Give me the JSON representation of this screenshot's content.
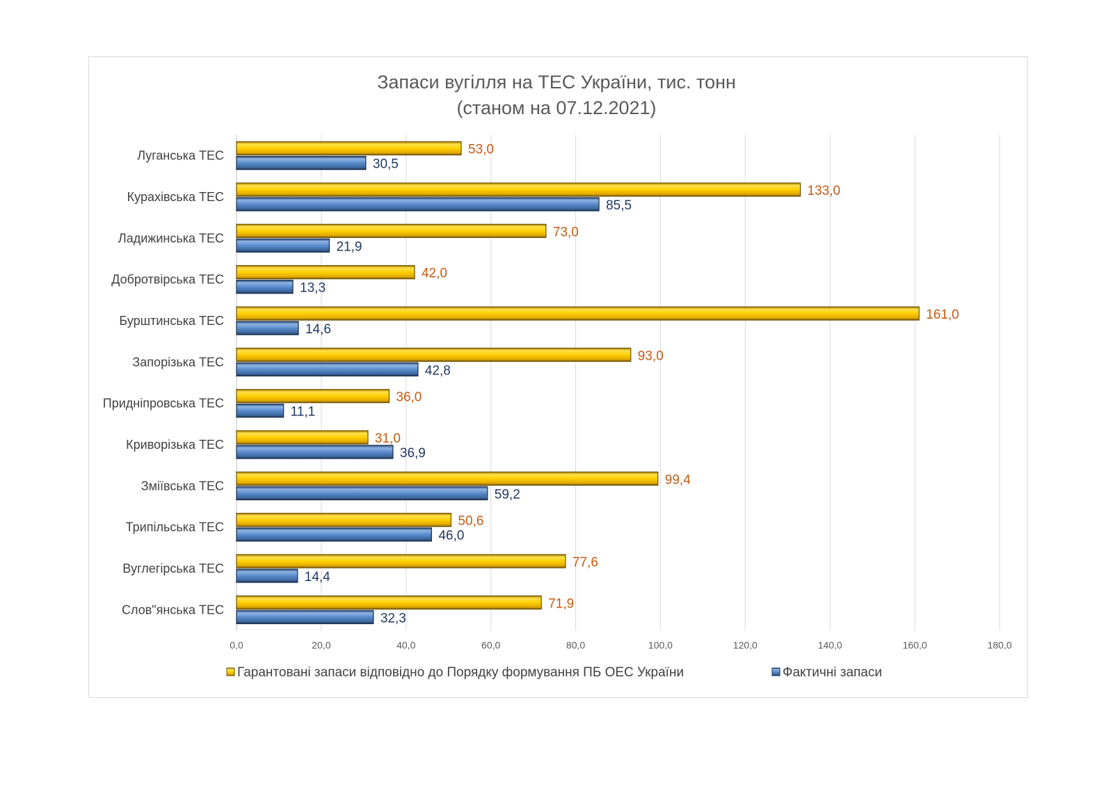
{
  "chart_data": {
    "type": "bar",
    "orientation": "horizontal",
    "title": "Запаси вугілля на ТЕС України, тис. тонн",
    "subtitle": "(станом на 07.12.2021)",
    "categories": [
      "Луганська ТЕС",
      "Курахівська ТЕС",
      "Ладижинська ТЕС",
      "Добротвірська ТЕС",
      "Бурштинська ТЕС",
      "Запорізька ТЕС",
      "Придніпровська ТЕС",
      "Криворізька ТЕС",
      "Зміївська ТЕС",
      "Трипільська ТЕС",
      "Вуглегірська ТЕС",
      "Слов\"янська ТЕС"
    ],
    "series": [
      {
        "name": "Гарантовані запаси відповідно до Порядку формування ПБ ОЕС України",
        "color": "#ffc000",
        "label_color": "#c55a11",
        "values": [
          53.0,
          133.0,
          73.0,
          42.0,
          161.0,
          93.0,
          36.0,
          31.0,
          99.4,
          50.6,
          77.6,
          71.9
        ],
        "labels": [
          "53,0",
          "133,0",
          "73,0",
          "42,0",
          "161,0",
          "93,0",
          "36,0",
          "31,0",
          "99,4",
          "50,6",
          "77,6",
          "71,9"
        ]
      },
      {
        "name": "Фактичні запаси",
        "color": "#4f81bd",
        "label_color": "#1f3864",
        "values": [
          30.5,
          85.5,
          21.9,
          13.3,
          14.6,
          42.8,
          11.1,
          36.9,
          59.2,
          46.0,
          14.4,
          32.3
        ],
        "labels": [
          "30,5",
          "85,5",
          "21,9",
          "13,3",
          "14,6",
          "42,8",
          "11,1",
          "36,9",
          "59,2",
          "46,0",
          "14,4",
          "32,3"
        ]
      }
    ],
    "xlim": [
      0,
      180
    ],
    "xticks": [
      0,
      20,
      40,
      60,
      80,
      100,
      120,
      140,
      160,
      180
    ],
    "xtick_labels": [
      "0,0",
      "20,0",
      "40,0",
      "60,0",
      "80,0",
      "100,0",
      "120,0",
      "140,0",
      "160,0",
      "180,0"
    ],
    "grid": true,
    "legend_position": "bottom"
  }
}
